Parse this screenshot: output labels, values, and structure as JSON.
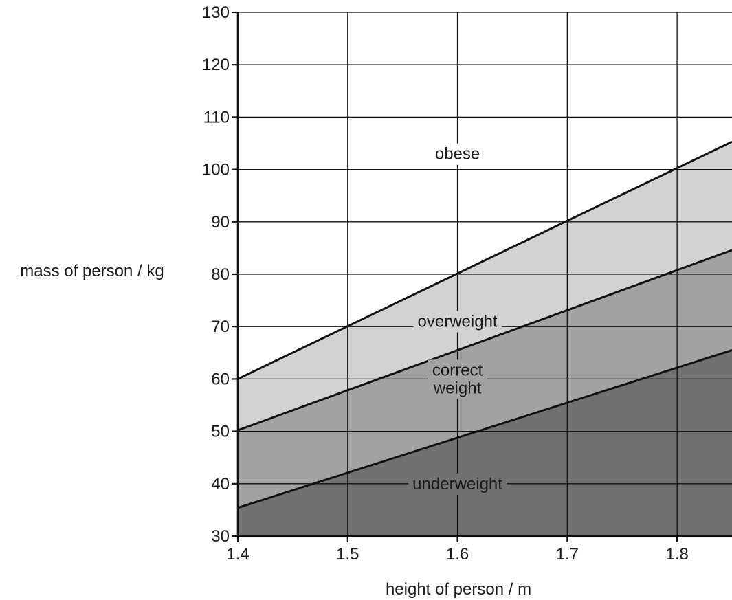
{
  "chart_data": {
    "type": "area",
    "xlabel": "height of person / m",
    "ylabel": "mass of person / kg",
    "xlim": [
      1.4,
      1.85
    ],
    "ylim": [
      30,
      130
    ],
    "x_ticks": [
      1.4,
      1.5,
      1.6,
      1.7,
      1.8
    ],
    "y_ticks": [
      30,
      40,
      50,
      60,
      70,
      80,
      90,
      100,
      110,
      120,
      130
    ],
    "grid": true,
    "boundaries": [
      {
        "name": "obese / overweight boundary",
        "x": [
          1.4,
          1.85
        ],
        "y": [
          60,
          105.3
        ]
      },
      {
        "name": "overweight / correct weight boundary",
        "x": [
          1.4,
          1.85
        ],
        "y": [
          50.2,
          84.6
        ]
      },
      {
        "name": "correct weight / underweight boundary",
        "x": [
          1.4,
          1.85
        ],
        "y": [
          35.4,
          65.5
        ]
      }
    ],
    "regions": [
      {
        "label": "obese",
        "color": "#ffffff"
      },
      {
        "label": "overweight",
        "color": "#d2d2d2"
      },
      {
        "label": "correct weight",
        "color": "#a2a2a2"
      },
      {
        "label": "underweight",
        "color": "#717171"
      }
    ],
    "region_labels": [
      {
        "lines": [
          "obese"
        ],
        "x": 1.6,
        "y": 103
      },
      {
        "lines": [
          "overweight"
        ],
        "x": 1.6,
        "y": 71
      },
      {
        "lines": [
          "correct",
          "weight"
        ],
        "x": 1.6,
        "y": 60
      },
      {
        "lines": [
          "underweight"
        ],
        "x": 1.6,
        "y": 40
      }
    ]
  }
}
